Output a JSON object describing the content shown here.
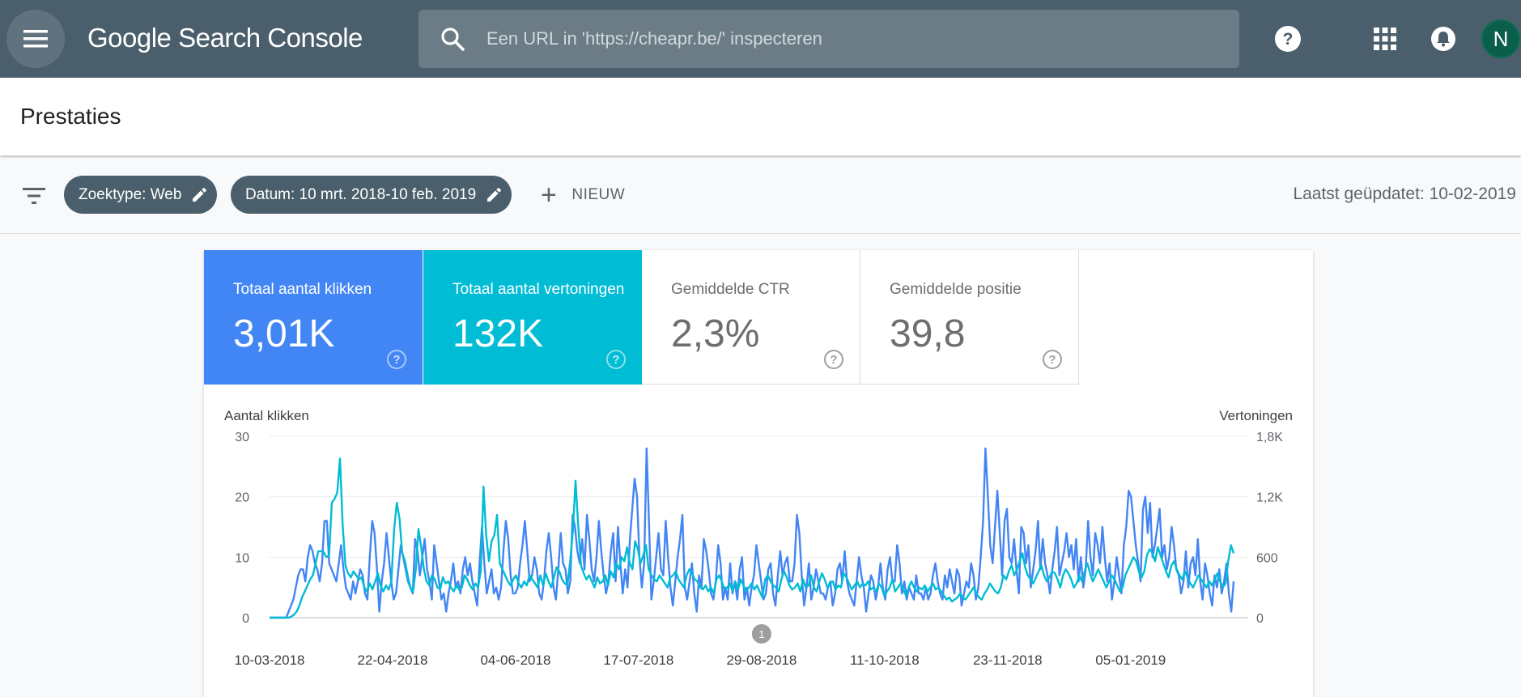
{
  "app": {
    "logo_text": "Google Search Console",
    "search_placeholder": "Een URL in 'https://cheapr.be/' inspecteren",
    "avatar_initial": "N"
  },
  "page": {
    "title": "Prestaties"
  },
  "filters": {
    "chips": [
      {
        "label": "Zoektype: Web"
      },
      {
        "label": "Datum: 10 mrt. 2018-10 feb. 2019"
      }
    ],
    "new_label": "NIEUW",
    "last_updated": "Laatst geüpdatet: 10-02-2019"
  },
  "metrics": [
    {
      "label": "Totaal aantal klikken",
      "value": "3,01K",
      "active": true,
      "color": "#4285f4"
    },
    {
      "label": "Totaal aantal vertoningen",
      "value": "132K",
      "active": true,
      "color": "#00bcd4"
    },
    {
      "label": "Gemiddelde CTR",
      "value": "2,3%",
      "active": false
    },
    {
      "label": "Gemiddelde positie",
      "value": "39,8",
      "active": false
    }
  ],
  "colors": {
    "topbar": "#4a5f6b",
    "clicks": "#4285f4",
    "impressions": "#00bcd4"
  },
  "chart_data": {
    "type": "line",
    "left_axis_label": "Aantal klikken",
    "right_axis_label": "Vertoningen",
    "y_left_ticks": [
      "30",
      "20",
      "10",
      "0"
    ],
    "y_right_ticks": [
      "1,8K",
      "1,2K",
      "600",
      "0"
    ],
    "ylim_left": [
      0,
      30
    ],
    "ylim_right": [
      0,
      1800
    ],
    "x_tick_labels": [
      "10-03-2018",
      "22-04-2018",
      "04-06-2018",
      "17-07-2018",
      "29-08-2018",
      "11-10-2018",
      "23-11-2018",
      "05-01-2019"
    ],
    "x_range": [
      "2018-03-10",
      "2019-02-10"
    ],
    "annotation": {
      "label": "1",
      "date": "2018-08-29"
    },
    "grid": true,
    "series": [
      {
        "name": "Totaal aantal klikken",
        "axis": "left",
        "color": "#4285f4",
        "values": [
          0,
          0,
          0,
          0,
          0,
          0,
          0,
          0,
          1,
          2,
          3,
          5,
          7,
          8,
          8,
          6,
          10,
          12,
          11,
          9,
          8,
          6,
          9,
          16,
          16,
          9,
          8,
          7,
          6,
          9,
          12,
          8,
          5,
          4,
          3,
          6,
          4,
          6,
          8,
          7,
          4,
          3,
          10,
          16,
          14,
          8,
          1,
          6,
          9,
          14,
          10,
          6,
          3,
          4,
          8,
          12,
          10,
          8,
          6,
          5,
          4,
          13,
          11,
          7,
          10,
          13,
          8,
          6,
          3,
          12,
          9,
          6,
          3,
          4,
          1,
          4,
          6,
          9,
          5,
          6,
          4,
          8,
          10,
          7,
          9,
          6,
          4,
          2,
          9,
          15,
          9,
          4,
          6,
          8,
          4,
          5,
          3,
          5,
          11,
          16,
          13,
          7,
          4,
          4,
          5,
          9,
          12,
          16,
          11,
          6,
          7,
          10,
          8,
          4,
          3,
          6,
          11,
          14,
          10,
          5,
          3,
          8,
          14,
          9,
          8,
          4,
          6,
          17,
          15,
          11,
          9,
          13,
          8,
          17,
          13,
          8,
          6,
          10,
          16,
          11,
          7,
          4,
          6,
          11,
          14,
          6,
          15,
          9,
          4,
          8,
          5,
          13,
          18,
          23,
          20,
          10,
          5,
          9,
          28,
          16,
          3,
          6,
          10,
          14,
          8,
          7,
          16,
          10,
          5,
          2,
          6,
          10,
          13,
          17,
          5,
          3,
          6,
          9,
          4,
          1,
          7,
          5,
          13,
          11,
          8,
          4,
          3,
          6,
          12,
          9,
          3,
          5,
          3,
          9,
          4,
          6,
          3,
          8,
          10,
          3,
          5,
          2,
          5,
          7,
          12,
          9,
          6,
          3,
          4,
          8,
          9,
          4,
          2,
          7,
          11,
          7,
          9,
          10,
          6,
          6,
          9,
          17,
          14,
          7,
          2,
          5,
          9,
          3,
          5,
          8,
          6,
          4,
          4,
          3,
          5,
          6,
          2,
          4,
          8,
          9,
          6,
          11,
          6,
          4,
          3,
          2,
          6,
          10,
          7,
          5,
          1,
          4,
          7,
          6,
          3,
          5,
          9,
          5,
          3,
          8,
          10,
          6,
          6,
          12,
          9,
          4,
          6,
          3,
          5,
          4,
          3,
          7,
          4,
          4,
          3,
          5,
          3,
          4,
          7,
          9,
          6,
          4,
          3,
          7,
          5,
          8,
          6,
          4,
          8,
          7,
          2,
          4,
          6,
          5,
          9,
          7,
          3,
          5,
          10,
          16,
          28,
          20,
          12,
          9,
          15,
          21,
          14,
          7,
          16,
          18,
          10,
          9,
          13,
          8,
          4,
          15,
          14,
          9,
          12,
          5,
          8,
          11,
          16,
          8,
          13,
          9,
          7,
          4,
          8,
          11,
          15,
          7,
          9,
          11,
          14,
          10,
          12,
          8,
          13,
          6,
          10,
          5,
          8,
          16,
          10,
          7,
          14,
          12,
          9,
          15,
          10,
          6,
          9,
          3,
          6,
          10,
          7,
          4,
          12,
          15,
          21,
          20,
          16,
          12,
          9,
          6,
          18,
          20,
          14,
          19,
          10,
          12,
          15,
          18,
          10,
          12,
          8,
          10,
          15,
          12,
          8,
          7,
          4,
          6,
          11,
          5,
          9,
          10,
          7,
          13,
          6,
          3,
          9,
          7,
          4,
          2,
          7,
          5,
          8,
          4,
          6,
          9,
          4,
          1,
          6
        ]
      },
      {
        "name": "Totaal aantal vertoningen",
        "axis": "right",
        "color": "#00bcd4",
        "values": [
          0,
          0,
          0,
          0,
          0,
          0,
          0,
          0,
          10,
          30,
          60,
          120,
          200,
          260,
          320,
          380,
          420,
          540,
          660,
          660,
          650,
          600,
          620,
          1140,
          1180,
          1240,
          1580,
          920,
          520,
          440,
          400,
          460,
          420,
          380,
          400,
          300,
          260,
          340,
          280,
          360,
          440,
          320,
          260,
          320,
          280,
          360,
          880,
          1140,
          980,
          640,
          560,
          420,
          300,
          260,
          480,
          880,
          700,
          480,
          360,
          320,
          420,
          380,
          300,
          280,
          400,
          340,
          360,
          300,
          260,
          320,
          280,
          300,
          420,
          380,
          320,
          280,
          340,
          300,
          460,
          1300,
          820,
          560,
          760,
          820,
          1020,
          540,
          480,
          420,
          360,
          320,
          380,
          420,
          340,
          300,
          360,
          320,
          420,
          380,
          340,
          300,
          420,
          320,
          440,
          360,
          300,
          400,
          500,
          460,
          380,
          340,
          320,
          560,
          860,
          1360,
          900,
          520,
          440,
          380,
          420,
          360,
          300,
          400,
          340,
          360,
          420,
          320,
          460,
          400,
          540,
          480,
          600,
          560,
          700,
          540,
          480,
          760,
          680,
          540,
          620,
          720,
          480,
          420,
          380,
          360,
          420,
          380,
          340,
          300,
          400,
          420,
          460,
          380,
          340,
          300,
          420,
          480,
          440,
          380,
          360,
          300,
          280,
          320,
          260,
          300,
          240,
          380,
          420,
          360,
          280,
          300,
          340,
          260,
          360,
          280,
          380,
          320,
          260,
          300,
          340,
          280,
          320,
          260,
          200,
          380,
          420,
          360,
          320,
          300,
          260,
          380,
          460,
          400,
          320,
          280,
          300,
          340,
          260,
          380,
          300,
          320,
          420,
          300,
          260,
          360,
          440,
          380,
          300,
          340,
          360,
          280,
          320,
          300,
          440,
          400,
          340,
          280,
          320,
          360,
          300,
          340,
          320,
          360,
          280,
          300,
          260,
          340,
          300,
          220,
          260,
          300,
          380,
          260,
          300,
          340,
          280,
          220,
          300,
          360,
          300,
          260,
          300,
          280,
          320,
          260,
          300,
          340,
          280,
          300,
          260,
          220,
          180,
          200,
          160,
          180,
          200,
          240,
          200,
          180,
          220,
          260,
          300,
          240,
          200,
          180,
          240,
          280,
          340,
          300,
          260,
          240,
          300,
          420,
          380,
          460,
          520,
          420,
          480,
          560,
          640,
          500,
          420,
          380,
          340,
          400,
          460,
          520,
          420,
          360,
          400,
          460,
          440,
          380,
          300,
          420,
          480,
          440,
          380,
          300,
          340,
          420,
          360,
          460,
          540,
          440,
          360,
          420,
          480,
          420,
          360,
          300,
          360,
          420,
          380,
          320,
          260,
          300,
          420,
          480,
          540,
          600,
          560,
          460,
          400,
          460,
          620,
          680,
          640,
          560,
          700,
          620,
          540,
          460,
          400,
          520,
          560,
          480,
          420,
          380,
          460,
          400,
          340,
          300,
          360,
          420,
          380,
          340,
          300,
          360,
          320,
          380,
          440,
          360,
          300,
          340,
          560,
          720,
          640
        ]
      }
    ]
  }
}
